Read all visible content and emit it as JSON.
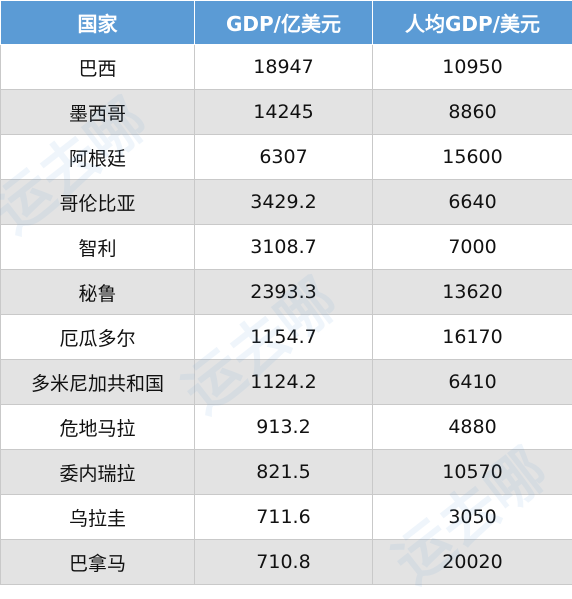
{
  "table": {
    "headers": [
      "国家",
      "GDP/亿美元",
      "人均GDP/美元"
    ],
    "rows": [
      [
        "巴西",
        "18947",
        "10950"
      ],
      [
        "墨西哥",
        "14245",
        "8860"
      ],
      [
        "阿根廷",
        "6307",
        "15600"
      ],
      [
        "哥伦比亚",
        "3429.2",
        "6640"
      ],
      [
        "智利",
        "3108.7",
        "7000"
      ],
      [
        "秘鲁",
        "2393.3",
        "13620"
      ],
      [
        "厄瓜多尔",
        "1154.7",
        "16170"
      ],
      [
        "多米尼加共和国",
        "1124.2",
        "6410"
      ],
      [
        "危地马拉",
        "913.2",
        "4880"
      ],
      [
        "委内瑞拉",
        "821.5",
        "10570"
      ],
      [
        "乌拉圭",
        "711.6",
        "3050"
      ],
      [
        "巴拿马",
        "710.8",
        "20020"
      ]
    ]
  },
  "watermark": {
    "text": "运去哪",
    "color": "#5b9bd5"
  }
}
